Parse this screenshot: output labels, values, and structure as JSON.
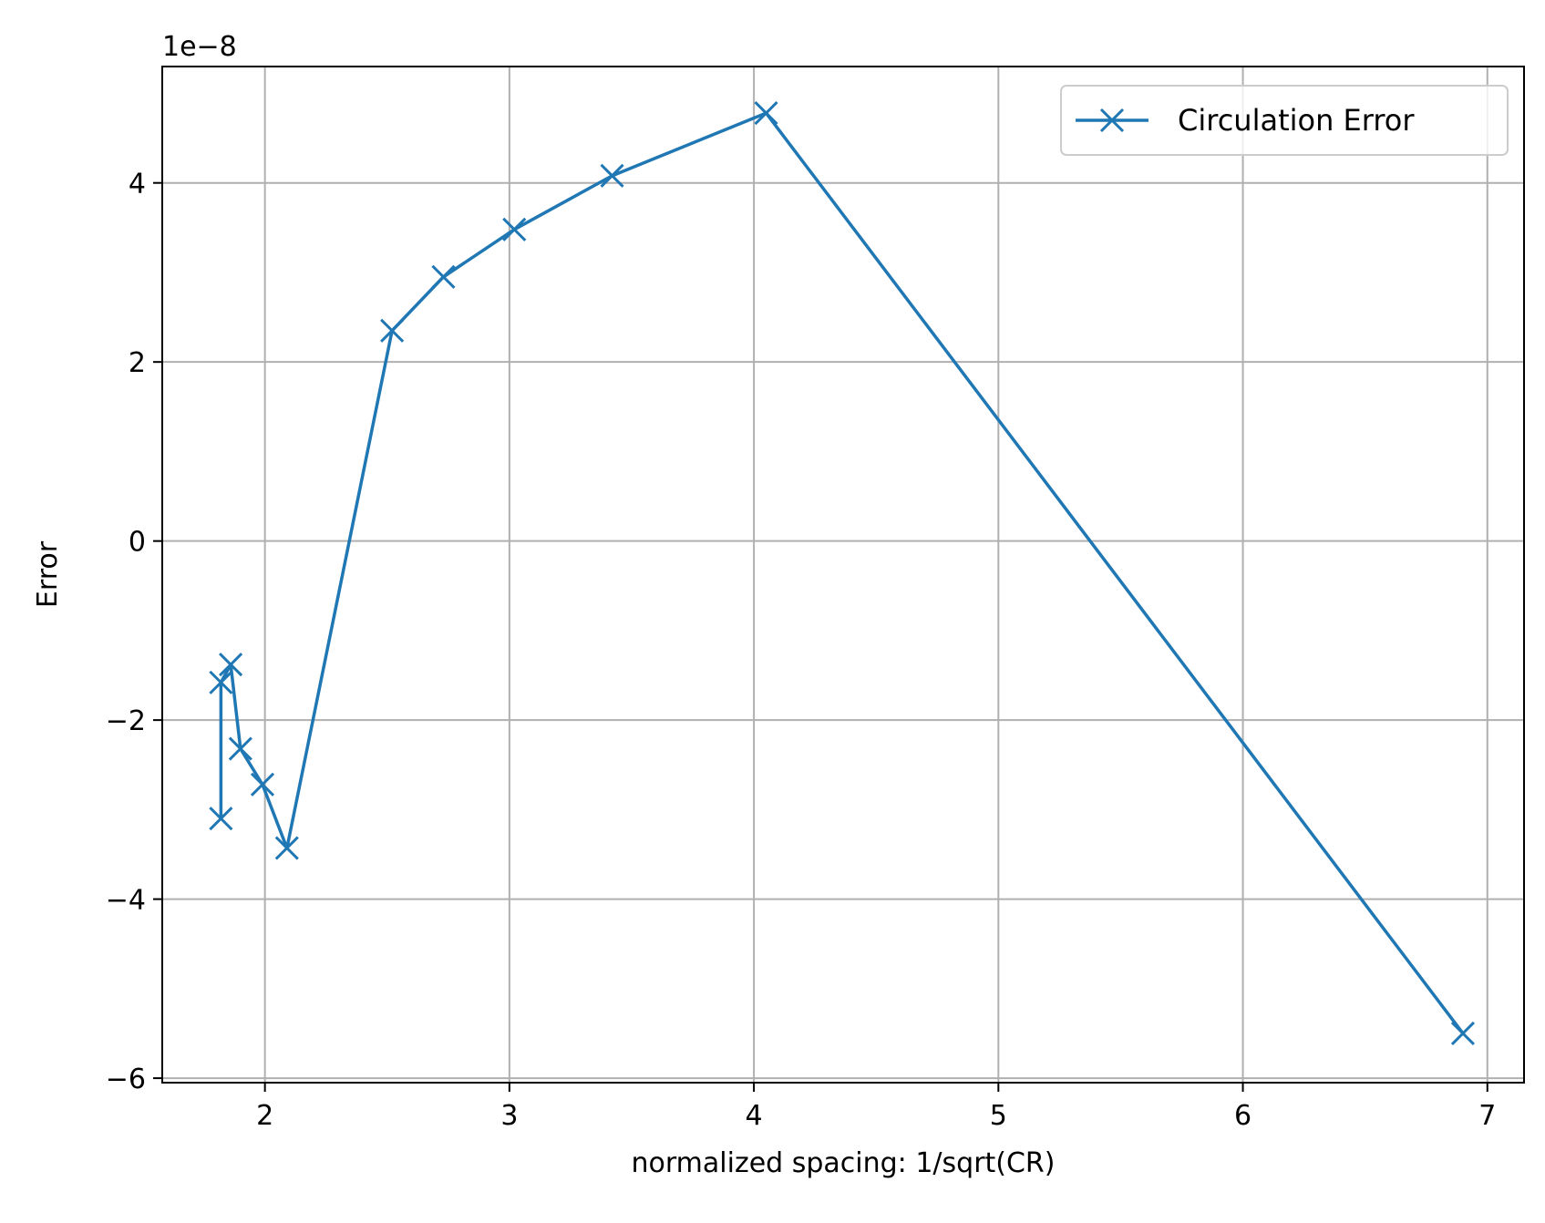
{
  "chart_data": {
    "type": "line",
    "title": "",
    "xlabel": "normalized spacing: 1/sqrt(CR)",
    "ylabel": "Error",
    "y_offset_label": "1e−8",
    "y_scale_factor": 1e-08,
    "xlim": [
      1.58,
      7.15
    ],
    "ylim": [
      -6.05,
      5.3
    ],
    "xticks": [
      2,
      3,
      4,
      5,
      6,
      7
    ],
    "xtick_labels": [
      "2",
      "3",
      "4",
      "5",
      "6",
      "7"
    ],
    "yticks": [
      -6,
      -4,
      -2,
      0,
      2,
      4
    ],
    "ytick_labels": [
      "−6",
      "−4",
      "−2",
      "0",
      "2",
      "4"
    ],
    "grid": true,
    "legend_position": "upper right",
    "colors": {
      "series": "#1f77b4",
      "grid": "#b0b0b0",
      "axes": "#000000",
      "legend_border": "#cccccc"
    },
    "series": [
      {
        "name": "Circulation Error",
        "marker": "x",
        "x": [
          1.82,
          1.82,
          1.86,
          1.9,
          1.99,
          2.09,
          2.52,
          2.73,
          3.02,
          3.42,
          4.05,
          6.9
        ],
        "y": [
          -3.1,
          -1.58,
          -1.38,
          -2.32,
          -2.72,
          -3.43,
          2.35,
          2.95,
          3.48,
          4.08,
          4.78,
          -5.5
        ]
      }
    ]
  }
}
